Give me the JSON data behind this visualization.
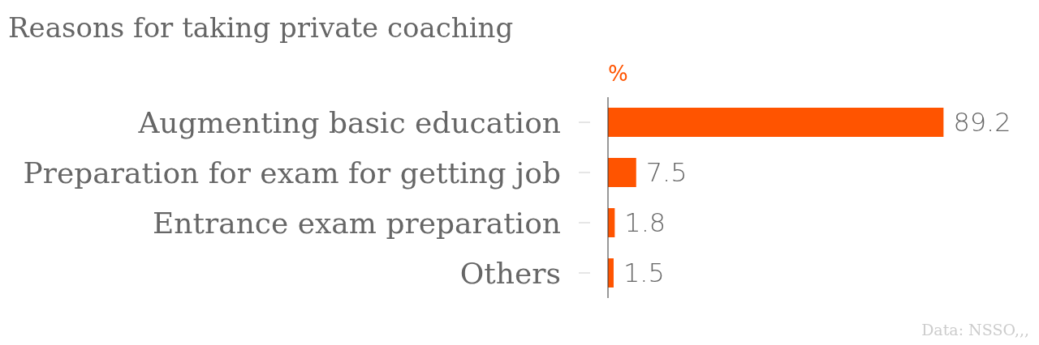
{
  "chart_data": {
    "type": "bar",
    "orientation": "horizontal",
    "title": "Reasons for taking private coaching",
    "xlabel": "%",
    "categories": [
      "Augmenting basic education",
      "Preparation for exam for getting job",
      "Entrance exam preparation",
      "Others"
    ],
    "values": [
      89.2,
      7.5,
      1.8,
      1.5
    ],
    "color": "#ff5400",
    "data_labels": true,
    "annotations": [
      "Data: NSSO,,,"
    ]
  }
}
